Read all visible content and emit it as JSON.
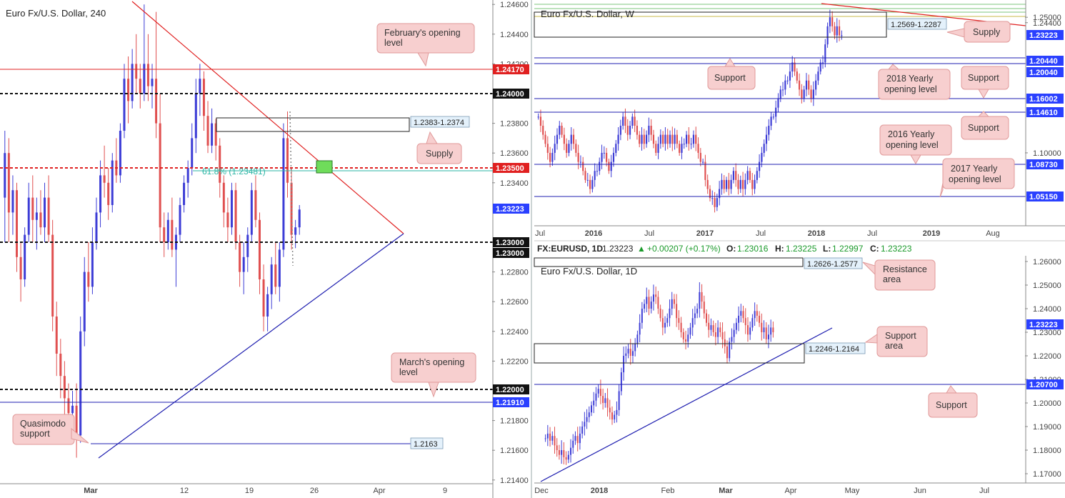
{
  "colors": {
    "bull": "#3d3dd6",
    "bear": "#e05050",
    "red_line": "#e02020",
    "blue_line": "#1f1fb0",
    "green_line": "#3a9a3a",
    "teal_line": "#2bb5a5",
    "callout_fill": "#f7cfcf",
    "callout_stroke": "#e09a9a",
    "price_tag_blue": "#2a40ff",
    "price_tag_red": "#e02020",
    "price_tag_dark": "#111111",
    "box_label_fill": "#e4f1fb"
  },
  "chart_data": [
    {
      "panel": "h4",
      "type": "candlestick",
      "title": "Euro Fx/U.S. Dollar, 240",
      "y_ticks": [
        "1.24600",
        "1.24400",
        "1.24200",
        "1.23800",
        "1.23600",
        "1.23400",
        "1.22800",
        "1.22600",
        "1.22400",
        "1.22200",
        "1.21800",
        "1.21600",
        "1.21400"
      ],
      "x_ticks": [
        "Mar",
        "12",
        "19",
        "26",
        "Apr",
        "9"
      ],
      "price_tags": [
        {
          "text": "1.24170",
          "style": "red"
        },
        {
          "text": "1.24000",
          "style": "dark"
        },
        {
          "text": "1.23500",
          "style": "red"
        },
        {
          "text": "1.23223",
          "style": "blue"
        },
        {
          "text": "1.23000",
          "style": "dark"
        },
        {
          "text": "1.23000",
          "style": "dark"
        },
        {
          "text": "1.22000",
          "style": "dark"
        },
        {
          "text": "1.21910",
          "style": "blue"
        }
      ],
      "levels": [
        1.2417,
        1.24,
        1.235,
        1.23,
        1.22,
        1.2191,
        1.2163
      ],
      "fib_label": "61.8% (1.23481)",
      "green_marker_price": 1.2349,
      "zone_labels": [
        "1.2383-1.2374",
        "1.2163"
      ],
      "callouts": [
        "February's opening level",
        "Supply",
        "March's opening level",
        "Quasimodo support"
      ],
      "candles": [
        [
          1.233,
          1.2375,
          1.23,
          1.236
        ],
        [
          1.236,
          1.237,
          1.23,
          1.232
        ],
        [
          1.232,
          1.2345,
          1.2305,
          1.2335
        ],
        [
          1.2335,
          1.234,
          1.228,
          1.229
        ],
        [
          1.229,
          1.23,
          1.226,
          1.2275
        ],
        [
          1.2275,
          1.231,
          1.227,
          1.2305
        ],
        [
          1.2305,
          1.234,
          1.23,
          1.233
        ],
        [
          1.233,
          1.2345,
          1.23,
          1.2315
        ],
        [
          1.2315,
          1.233,
          1.2295,
          1.232
        ],
        [
          1.232,
          1.2335,
          1.2305,
          1.231
        ],
        [
          1.231,
          1.234,
          1.23,
          1.233
        ],
        [
          1.233,
          1.2345,
          1.23,
          1.2305
        ],
        [
          1.2305,
          1.2315,
          1.224,
          1.225
        ],
        [
          1.225,
          1.226,
          1.221,
          1.2225
        ],
        [
          1.2225,
          1.2235,
          1.2195,
          1.221
        ],
        [
          1.221,
          1.222,
          1.218,
          1.2195
        ],
        [
          1.2195,
          1.2205,
          1.217,
          1.2185
        ],
        [
          1.2185,
          1.22,
          1.2165,
          1.219
        ],
        [
          1.219,
          1.2205,
          1.2155,
          1.217
        ],
        [
          1.217,
          1.225,
          1.2165,
          1.224
        ],
        [
          1.224,
          1.229,
          1.223,
          1.228
        ],
        [
          1.228,
          1.23,
          1.226,
          1.227
        ],
        [
          1.227,
          1.231,
          1.2265,
          1.23
        ],
        [
          1.23,
          1.233,
          1.2295,
          1.232
        ],
        [
          1.232,
          1.2355,
          1.231,
          1.2345
        ],
        [
          1.2345,
          1.2365,
          1.233,
          1.234
        ],
        [
          1.234,
          1.235,
          1.2315,
          1.2325
        ],
        [
          1.2325,
          1.236,
          1.232,
          1.2355
        ],
        [
          1.2355,
          1.237,
          1.234,
          1.2345
        ],
        [
          1.2345,
          1.238,
          1.234,
          1.2375
        ],
        [
          1.2375,
          1.242,
          1.237,
          1.241
        ],
        [
          1.241,
          1.2425,
          1.238,
          1.2395
        ],
        [
          1.2395,
          1.243,
          1.239,
          1.242
        ],
        [
          1.242,
          1.244,
          1.24,
          1.241
        ],
        [
          1.241,
          1.242,
          1.239,
          1.24
        ],
        [
          1.24,
          1.246,
          1.2395,
          1.242
        ],
        [
          1.242,
          1.244,
          1.2395,
          1.2405
        ],
        [
          1.2405,
          1.242,
          1.239,
          1.241
        ],
        [
          1.241,
          1.2455,
          1.237,
          1.238
        ],
        [
          1.238,
          1.24,
          1.23,
          1.231
        ],
        [
          1.231,
          1.232,
          1.229,
          1.23
        ],
        [
          1.23,
          1.232,
          1.2295,
          1.2315
        ],
        [
          1.2315,
          1.233,
          1.229,
          1.2295
        ],
        [
          1.2295,
          1.231,
          1.227,
          1.2305
        ],
        [
          1.2305,
          1.233,
          1.23,
          1.2325
        ],
        [
          1.2325,
          1.2345,
          1.232,
          1.234
        ],
        [
          1.234,
          1.2355,
          1.233,
          1.235
        ],
        [
          1.235,
          1.238,
          1.2345,
          1.237
        ],
        [
          1.237,
          1.241,
          1.236,
          1.24
        ],
        [
          1.24,
          1.242,
          1.2385,
          1.241
        ],
        [
          1.241,
          1.2415,
          1.2375,
          1.2385
        ],
        [
          1.2385,
          1.2395,
          1.236,
          1.2365
        ],
        [
          1.2365,
          1.239,
          1.236,
          1.238
        ],
        [
          1.238,
          1.2383,
          1.2355,
          1.2365
        ],
        [
          1.2365,
          1.237,
          1.233,
          1.234
        ],
        [
          1.234,
          1.2345,
          1.231,
          1.232
        ],
        [
          1.232,
          1.233,
          1.23,
          1.231
        ],
        [
          1.231,
          1.234,
          1.2305,
          1.2335
        ],
        [
          1.2335,
          1.234,
          1.2295,
          1.23
        ],
        [
          1.23,
          1.2305,
          1.227,
          1.228
        ],
        [
          1.228,
          1.23,
          1.2265,
          1.229
        ],
        [
          1.229,
          1.231,
          1.228,
          1.2305
        ],
        [
          1.2305,
          1.234,
          1.23,
          1.2335
        ],
        [
          1.2335,
          1.2345,
          1.231,
          1.2315
        ],
        [
          1.2315,
          1.232,
          1.2265,
          1.2275
        ],
        [
          1.2275,
          1.2285,
          1.224,
          1.225
        ],
        [
          1.225,
          1.227,
          1.224,
          1.2265
        ],
        [
          1.2265,
          1.229,
          1.2255,
          1.2285
        ],
        [
          1.2285,
          1.23,
          1.2265,
          1.227
        ],
        [
          1.227,
          1.23,
          1.226,
          1.2295
        ],
        [
          1.2295,
          1.238,
          1.229,
          1.237
        ],
        [
          1.237,
          1.2388,
          1.233,
          1.234
        ],
        [
          1.234,
          1.235,
          1.2295,
          1.2305
        ],
        [
          1.2305,
          1.2315,
          1.2296,
          1.231
        ],
        [
          1.231,
          1.2325,
          1.2305,
          1.2322
        ]
      ]
    },
    {
      "panel": "weekly",
      "type": "candlestick",
      "title": "Euro Fx/U.S. Dollar, W",
      "y_ticks": [
        "1.25000",
        "1.24400",
        "1.10000"
      ],
      "x_ticks": [
        "Jul",
        "2016",
        "Jul",
        "2017",
        "Jul",
        "2018",
        "Jul",
        "2019",
        "Aug"
      ],
      "price_tags": [
        {
          "text": "1.23223",
          "style": "blue"
        },
        {
          "text": "1.20440",
          "style": "blue"
        },
        {
          "text": "1.20040",
          "style": "blue"
        },
        {
          "text": "1.16002",
          "style": "blue"
        },
        {
          "text": "1.14610",
          "style": "blue"
        },
        {
          "text": "1.08730",
          "style": "blue"
        },
        {
          "text": "1.05150",
          "style": "blue"
        }
      ],
      "levels": [
        1.2044,
        1.2004,
        1.16002,
        1.1461,
        1.0873,
        1.0515
      ],
      "zone_labels": [
        "1.2569-1.2287"
      ],
      "callouts": [
        "Supply",
        "Support",
        "2018 Yearly opening level",
        "Support",
        "Support",
        "2016 Yearly opening level",
        "2017 Yearly opening level"
      ],
      "closes": [
        1.14,
        1.13,
        1.12,
        1.11,
        1.1,
        1.09,
        1.1,
        1.11,
        1.12,
        1.13,
        1.12,
        1.11,
        1.1,
        1.11,
        1.12,
        1.11,
        1.1,
        1.09,
        1.09,
        1.08,
        1.07,
        1.07,
        1.06,
        1.07,
        1.08,
        1.08,
        1.09,
        1.1,
        1.1,
        1.09,
        1.08,
        1.09,
        1.1,
        1.11,
        1.12,
        1.13,
        1.14,
        1.13,
        1.12,
        1.13,
        1.14,
        1.13,
        1.12,
        1.11,
        1.12,
        1.11,
        1.12,
        1.13,
        1.12,
        1.11,
        1.1,
        1.11,
        1.12,
        1.11,
        1.12,
        1.11,
        1.12,
        1.11,
        1.12,
        1.11,
        1.1,
        1.11,
        1.11,
        1.12,
        1.11,
        1.11,
        1.12,
        1.11,
        1.1,
        1.09,
        1.09,
        1.07,
        1.06,
        1.05,
        1.05,
        1.04,
        1.05,
        1.06,
        1.07,
        1.06,
        1.07,
        1.06,
        1.07,
        1.08,
        1.07,
        1.06,
        1.07,
        1.06,
        1.07,
        1.08,
        1.07,
        1.06,
        1.07,
        1.08,
        1.09,
        1.1,
        1.11,
        1.12,
        1.13,
        1.14,
        1.14,
        1.15,
        1.16,
        1.17,
        1.17,
        1.18,
        1.18,
        1.19,
        1.2,
        1.19,
        1.18,
        1.17,
        1.16,
        1.17,
        1.18,
        1.17,
        1.16,
        1.17,
        1.18,
        1.19,
        1.2,
        1.2,
        1.22,
        1.24,
        1.25,
        1.24,
        1.23,
        1.24,
        1.23,
        1.23
      ]
    },
    {
      "panel": "daily",
      "type": "candlestick",
      "title": "Euro Fx/U.S. Dollar, 1D",
      "symbol_line": {
        "symbol": "FX:EURUSD, 1D",
        "price": "1.23223",
        "change": "+0.00207 (+0.17%)",
        "o_label": "O:",
        "o": "1.23016",
        "h_label": "H:",
        "h": "1.23225",
        "l_label": "L:",
        "l": "1.22997",
        "c_label": "C:",
        "c": "1.23223"
      },
      "y_ticks": [
        "1.26000",
        "1.25000",
        "1.24000",
        "1.23000",
        "1.22000",
        "1.21000",
        "1.20000",
        "1.19000",
        "1.18000",
        "1.17000"
      ],
      "x_ticks": [
        "Dec",
        "2018",
        "Feb",
        "Mar",
        "Apr",
        "May",
        "Jun",
        "Jul"
      ],
      "price_tags": [
        {
          "text": "1.23223",
          "style": "blue"
        },
        {
          "text": "1.20700",
          "style": "blue"
        }
      ],
      "levels": [
        1.207
      ],
      "zone_labels": [
        "1.2626-1.2577",
        "1.2246-1.2164"
      ],
      "callouts": [
        "Resistance area",
        "Support area",
        "Support"
      ],
      "closes": [
        1.185,
        1.187,
        1.184,
        1.186,
        1.182,
        1.18,
        1.178,
        1.18,
        1.177,
        1.176,
        1.178,
        1.181,
        1.184,
        1.186,
        1.183,
        1.187,
        1.19,
        1.192,
        1.194,
        1.196,
        1.199,
        1.201,
        1.204,
        1.206,
        1.203,
        1.2,
        1.202,
        1.198,
        1.196,
        1.193,
        1.195,
        1.197,
        1.205,
        1.213,
        1.22,
        1.221,
        1.223,
        1.22,
        1.222,
        1.225,
        1.229,
        1.234,
        1.24,
        1.242,
        1.245,
        1.24,
        1.243,
        1.246,
        1.245,
        1.24,
        1.236,
        1.232,
        1.234,
        1.236,
        1.24,
        1.244,
        1.242,
        1.236,
        1.234,
        1.23,
        1.227,
        1.226,
        1.229,
        1.232,
        1.236,
        1.238,
        1.24,
        1.247,
        1.243,
        1.238,
        1.234,
        1.231,
        1.233,
        1.23,
        1.228,
        1.232,
        1.23,
        1.227,
        1.224,
        1.219,
        1.226,
        1.228,
        1.231,
        1.234,
        1.237,
        1.239,
        1.236,
        1.233,
        1.229,
        1.232,
        1.236,
        1.239,
        1.237,
        1.234,
        1.23,
        1.232,
        1.227,
        1.229,
        1.232,
        1.23
      ]
    }
  ]
}
